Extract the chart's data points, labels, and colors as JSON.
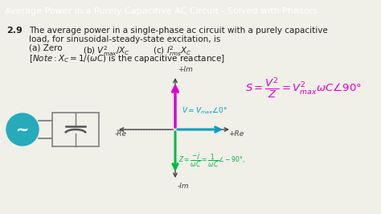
{
  "title": "Average Power in a Purely Capacitive AC Circuit - Solved with Phasors",
  "title_bg": "#2DB8C8",
  "title_color": "white",
  "title_fontsize": 8.0,
  "body_bg": "#F0EFE8",
  "question_number": "2.9",
  "line1": "The average power in a single-phase ac circuit with a purely capacitive",
  "line2": "load, for sinusoidal-steady-state excitation, is",
  "line3a": "(a) Zero",
  "line3b": "(b) $V^2_{max}/X_C$",
  "line3c": "(c) $I^2_{rms}X_C$",
  "line4": "$[Note: X_C = 1/(\\omega C)$ is the capacitive reactance$]$",
  "phasor_formula": "$S = \\dfrac{V^2}{Z} = V^2_{max}\\omega C\\angle 90°$",
  "V_label": "$V = V_{max}\\angle 0°$",
  "Z_label": "$Z = \\dfrac{-j}{\\omega C} = \\dfrac{1}{\\omega C}\\angle -90°$,",
  "plus_im": "+Im",
  "minus_im": "-Im",
  "minus_re": "-Re",
  "plus_re": "+Re",
  "arrow_S_color": "#DD00CC",
  "arrow_V_color": "#00A0C0",
  "arrow_Z_color": "#00BB44",
  "axis_color": "#444444",
  "circle_color": "#26ABBB",
  "cap_color": "#888888",
  "text_dark": "#222222",
  "label_italic_color": "#444444"
}
